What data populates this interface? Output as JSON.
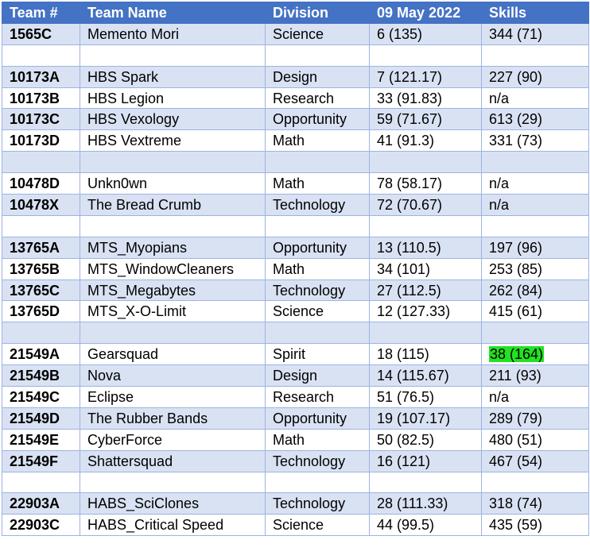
{
  "headers": {
    "team": "Team #",
    "name": "Team Name",
    "division": "Division",
    "date": "09 May 2022",
    "skills": "Skills"
  },
  "rows": [
    {
      "team": "1565C",
      "name": "Memento Mori",
      "division": "Science",
      "date": "6 (135)",
      "skills": "344 (71)"
    },
    {
      "team": "",
      "name": "",
      "division": "",
      "date": "",
      "skills": ""
    },
    {
      "team": "10173A",
      "name": "HBS Spark",
      "division": "Design",
      "date": "7 (121.17)",
      "skills": "227 (90)"
    },
    {
      "team": "10173B",
      "name": "HBS Legion",
      "division": "Research",
      "date": "33 (91.83)",
      "skills": "n/a"
    },
    {
      "team": "10173C",
      "name": "HBS Vexology",
      "division": "Opportunity",
      "date": "59 (71.67)",
      "skills": "613 (29)"
    },
    {
      "team": "10173D",
      "name": "HBS Vextreme",
      "division": "Math",
      "date": "41 (91.3)",
      "skills": "331 (73)"
    },
    {
      "team": "",
      "name": "",
      "division": "",
      "date": "",
      "skills": ""
    },
    {
      "team": "10478D",
      "name": "Unkn0wn",
      "division": "Math",
      "date": "78 (58.17)",
      "skills": "n/a"
    },
    {
      "team": "10478X",
      "name": "The Bread Crumb",
      "division": "Technology",
      "date": "72 (70.67)",
      "skills": "n/a"
    },
    {
      "team": "",
      "name": "",
      "division": "",
      "date": "",
      "skills": ""
    },
    {
      "team": "13765A",
      "name": "MTS_Myopians",
      "division": "Opportunity",
      "date": "13 (110.5)",
      "skills": "197 (96)"
    },
    {
      "team": "13765B",
      "name": "MTS_WindowCleaners",
      "division": "Math",
      "date": "34 (101)",
      "skills": "253 (85)"
    },
    {
      "team": "13765C",
      "name": "MTS_Megabytes",
      "division": "Technology",
      "date": "27 (112.5)",
      "skills": "262 (84)"
    },
    {
      "team": "13765D",
      "name": "MTS_X-O-Limit",
      "division": "Science",
      "date": "12 (127.33)",
      "skills": "415 (61)"
    },
    {
      "team": "",
      "name": "",
      "division": "",
      "date": "",
      "skills": ""
    },
    {
      "team": "21549A",
      "name": "Gearsquad",
      "division": "Spirit",
      "date": "18 (115)",
      "skills": "38 (164)",
      "skills_highlight": "#22e222"
    },
    {
      "team": "21549B",
      "name": "Nova",
      "division": "Design",
      "date": "14 (115.67)",
      "skills": "211 (93)"
    },
    {
      "team": "21549C",
      "name": "Eclipse",
      "division": "Research",
      "date": "51 (76.5)",
      "skills": "n/a"
    },
    {
      "team": "21549D",
      "name": "The Rubber Bands",
      "division": "Opportunity",
      "date": "19 (107.17)",
      "skills": "289 (79)"
    },
    {
      "team": "21549E",
      "name": "CyberForce",
      "division": "Math",
      "date": "50 (82.5)",
      "skills": "480 (51)"
    },
    {
      "team": "21549F",
      "name": "Shattersquad",
      "division": "Technology",
      "date": "16 (121)",
      "skills": "467 (54)"
    },
    {
      "team": "",
      "name": "",
      "division": "",
      "date": "",
      "skills": ""
    },
    {
      "team": "22903A",
      "name": "HABS_SciClones",
      "division": "Technology",
      "date": "28 (111.33)",
      "skills": "318 (74)"
    },
    {
      "team": "22903C",
      "name": "HABS_Critical Speed",
      "division": "Science",
      "date": "44 (99.5)",
      "skills": "435 (59)"
    }
  ],
  "colors": {
    "header_bg": "#4472c4",
    "band_bg": "#d9e2f3",
    "border": "#9db3e0",
    "highlight": "#22e222"
  }
}
